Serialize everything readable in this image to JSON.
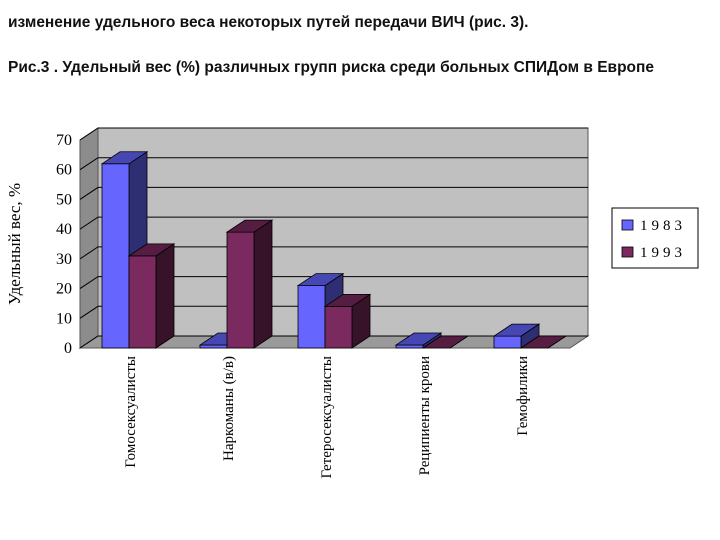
{
  "header": {
    "intro_text": "изменение удельного веса некоторых путей передачи ВИЧ  (рис. 3).",
    "figure_caption": "Рис.3 . Удельный вес (%) различных групп риска среди больных СПИДом в Европе"
  },
  "chart_data": {
    "type": "bar",
    "style": "3d-clustered",
    "title": "",
    "xlabel": "",
    "ylabel": "Удельный вес, %",
    "ylim": [
      0,
      70
    ],
    "yticks": [
      0,
      10,
      20,
      30,
      40,
      50,
      60,
      70
    ],
    "grid": true,
    "legend_position": "right",
    "categories": [
      "Гомосексуалисты",
      "Наркоманы (в/в)",
      "Гетеросексуалисты",
      "Реципиенты крови",
      "Гемофилики"
    ],
    "series": [
      {
        "name": "1983",
        "values": [
          62,
          1,
          21,
          1,
          4
        ],
        "color": "#6666ff"
      },
      {
        "name": "1993",
        "values": [
          31,
          39,
          14,
          0,
          0
        ],
        "color": "#7a2a5e"
      }
    ],
    "wall_color": "#c0c0c0",
    "gridline_color": "#000000"
  }
}
